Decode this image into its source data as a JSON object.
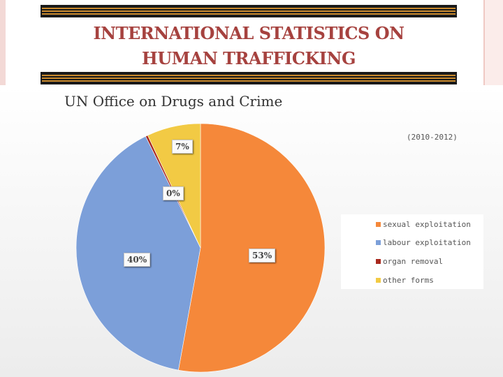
{
  "slide": {
    "title_line1": "INTERNATIONAL STATISTICS ON",
    "title_line2": "HUMAN TRAFFICKING"
  },
  "chart_data": {
    "type": "pie",
    "title": "UN Office on Drugs and Crime",
    "subtitle": "(2010-2012)",
    "legend_position": "right",
    "categories": [
      "sexual exploitation",
      "labour exploitation",
      "organ removal",
      "other forms"
    ],
    "values": [
      53,
      40,
      0.3,
      7
    ],
    "data_labels": [
      "53%",
      "40%",
      "0%",
      "7%"
    ],
    "colors": [
      "#f5883a",
      "#7c9fd9",
      "#a8281d",
      "#f2ca44"
    ]
  }
}
